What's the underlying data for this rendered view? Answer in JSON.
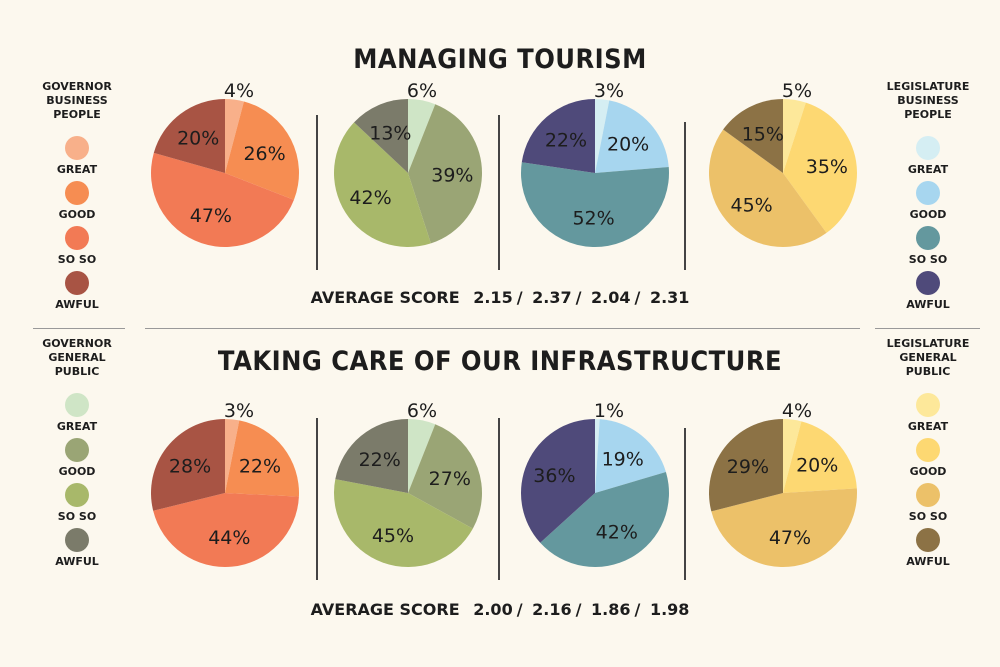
{
  "categories": [
    "GREAT",
    "GOOD",
    "SO SO",
    "AWFUL"
  ],
  "palettes": {
    "gov_business": [
      "#f8b08a",
      "#f68d52",
      "#f27a55",
      "#a85444"
    ],
    "gov_public": [
      "#cfe5c6",
      "#9aa575",
      "#a8b86a",
      "#7b7b6a"
    ],
    "leg_business": [
      "#d5eef3",
      "#a7d6ef",
      "#64989e",
      "#4f4a7a"
    ],
    "leg_public": [
      "#fde89a",
      "#fdd872",
      "#ecc169",
      "#8c7245"
    ]
  },
  "legends": {
    "top_left": {
      "title": [
        "GOVERNOR",
        "BUSINESS",
        "PEOPLE"
      ],
      "labels": [
        "GREAT",
        "GOOD",
        "SO SO",
        "AWFUL"
      ]
    },
    "top_right": {
      "title": [
        "LEGISLATURE",
        "BUSINESS",
        "PEOPLE"
      ],
      "labels": [
        "GREAT",
        "GOOD",
        "SO SO",
        "AWFUL"
      ]
    },
    "bottom_left": {
      "title": [
        "GOVERNOR",
        "GENERAL",
        "PUBLIC"
      ],
      "labels": [
        "GREAT",
        "GOOD",
        "SO SO",
        "AWFUL"
      ]
    },
    "bottom_right": {
      "title": [
        "LEGISLATURE",
        "GENERAL",
        "PUBLIC"
      ],
      "labels": [
        "GREAT",
        "GOOD",
        "SO SO",
        "AWFUL"
      ]
    }
  },
  "sections": [
    {
      "title": "MANAGING TOURISM",
      "avg_label": "AVERAGE SCORE",
      "scores": [
        "2.15",
        "2.37",
        "2.04",
        "2.31"
      ]
    },
    {
      "title": "TAKING CARE OF OUR INFRASTRUCTURE",
      "avg_label": "AVERAGE SCORE",
      "scores": [
        "2.00",
        "2.16",
        "1.86",
        "1.98"
      ]
    }
  ],
  "chart_data": [
    {
      "type": "pie",
      "title": "MANAGING TOURISM",
      "group": "Governor – Business People",
      "categories": [
        "GREAT",
        "GOOD",
        "SO SO",
        "AWFUL"
      ],
      "values": [
        4,
        26,
        47,
        20
      ]
    },
    {
      "type": "pie",
      "title": "MANAGING TOURISM",
      "group": "Governor – General Public",
      "categories": [
        "GREAT",
        "GOOD",
        "SO SO",
        "AWFUL"
      ],
      "values": [
        6,
        39,
        42,
        13
      ]
    },
    {
      "type": "pie",
      "title": "MANAGING TOURISM",
      "group": "Legislature – Business People",
      "categories": [
        "GREAT",
        "GOOD",
        "SO SO",
        "AWFUL"
      ],
      "values": [
        3,
        20,
        52,
        22
      ]
    },
    {
      "type": "pie",
      "title": "MANAGING TOURISM",
      "group": "Legislature – General Public",
      "categories": [
        "GREAT",
        "GOOD",
        "SO SO",
        "AWFUL"
      ],
      "values": [
        5,
        35,
        45,
        15
      ]
    },
    {
      "type": "pie",
      "title": "TAKING CARE OF OUR INFRASTRUCTURE",
      "group": "Governor – Business People",
      "categories": [
        "GREAT",
        "GOOD",
        "SO SO",
        "AWFUL"
      ],
      "values": [
        3,
        22,
        44,
        28
      ]
    },
    {
      "type": "pie",
      "title": "TAKING CARE OF OUR INFRASTRUCTURE",
      "group": "Governor – General Public",
      "categories": [
        "GREAT",
        "GOOD",
        "SO SO",
        "AWFUL"
      ],
      "values": [
        6,
        27,
        45,
        22
      ]
    },
    {
      "type": "pie",
      "title": "TAKING CARE OF OUR INFRASTRUCTURE",
      "group": "Legislature – Business People",
      "categories": [
        "GREAT",
        "GOOD",
        "SO SO",
        "AWFUL"
      ],
      "values": [
        1,
        19,
        42,
        36
      ]
    },
    {
      "type": "pie",
      "title": "TAKING CARE OF OUR INFRASTRUCTURE",
      "group": "Legislature – General Public",
      "categories": [
        "GREAT",
        "GOOD",
        "SO SO",
        "AWFUL"
      ],
      "values": [
        4,
        20,
        47,
        29
      ]
    }
  ]
}
